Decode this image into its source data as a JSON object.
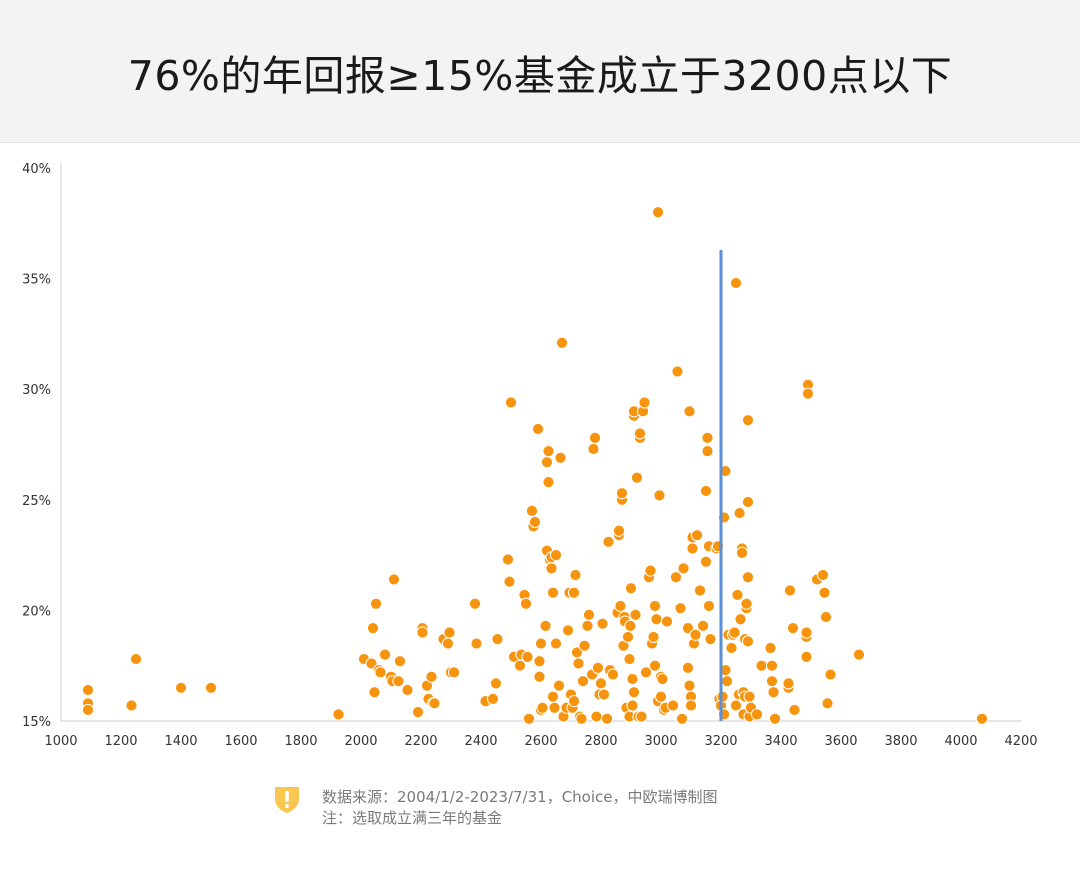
{
  "header": {
    "title": "76%的年回报≥15%基金成立于3200点以下"
  },
  "footer": {
    "source": "数据来源：2004/1/2-2023/7/31，Choice，中欧瑞博制图",
    "note": "注：选取成立满三年的基金",
    "icon": "shield-exclamation-icon"
  },
  "colors": {
    "point": "#f7940f",
    "threshold_line": "#5b8fd6",
    "axis": "#cccccc",
    "header_bg": "#f3f3f3"
  },
  "chart_data": {
    "type": "scatter",
    "title": "76%的年回报≥15%基金成立于3200点以下",
    "xlim": [
      1000,
      4200
    ],
    "ylim": [
      15,
      40
    ],
    "x_ticks": [
      1000,
      1200,
      1400,
      1600,
      1800,
      2000,
      2200,
      2400,
      2600,
      2800,
      3000,
      3200,
      3400,
      3600,
      3800,
      4000,
      4200
    ],
    "y_ticks": [
      15,
      20,
      25,
      30,
      35,
      40
    ],
    "y_tick_labels": [
      "15%",
      "20%",
      "25%",
      "30%",
      "35%",
      "40%"
    ],
    "grid": false,
    "legend": "none",
    "vertical_line": {
      "x": 3200,
      "y_top": 36.3
    },
    "points": [
      [
        1090,
        16.4
      ],
      [
        1090,
        15.8
      ],
      [
        1090,
        15.5
      ],
      [
        1235,
        15.7
      ],
      [
        1250,
        17.8
      ],
      [
        1400,
        16.5
      ],
      [
        1500,
        16.5
      ],
      [
        1925,
        15.3
      ],
      [
        2010,
        17.8
      ],
      [
        2035,
        17.6
      ],
      [
        2040,
        19.2
      ],
      [
        2045,
        16.3
      ],
      [
        2050,
        20.3
      ],
      [
        2060,
        17.3
      ],
      [
        2065,
        17.2
      ],
      [
        2080,
        18.0
      ],
      [
        2100,
        17.0
      ],
      [
        2105,
        16.8
      ],
      [
        2110,
        21.4
      ],
      [
        2125,
        16.8
      ],
      [
        2130,
        17.7
      ],
      [
        2155,
        16.4
      ],
      [
        2190,
        15.4
      ],
      [
        2205,
        19.2
      ],
      [
        2205,
        19.0
      ],
      [
        2220,
        16.6
      ],
      [
        2225,
        16.0
      ],
      [
        2235,
        17.0
      ],
      [
        2240,
        15.8
      ],
      [
        2245,
        15.8
      ],
      [
        2275,
        18.7
      ],
      [
        2290,
        18.5
      ],
      [
        2295,
        19.0
      ],
      [
        2300,
        17.2
      ],
      [
        2310,
        17.2
      ],
      [
        2380,
        20.3
      ],
      [
        2385,
        18.5
      ],
      [
        2415,
        15.9
      ],
      [
        2440,
        16.0
      ],
      [
        2450,
        16.7
      ],
      [
        2455,
        18.7
      ],
      [
        2490,
        22.3
      ],
      [
        2495,
        21.3
      ],
      [
        2500,
        29.4
      ],
      [
        2510,
        17.9
      ],
      [
        2530,
        17.5
      ],
      [
        2535,
        18.0
      ],
      [
        2545,
        20.7
      ],
      [
        2550,
        20.3
      ],
      [
        2555,
        17.9
      ],
      [
        2560,
        15.1
      ],
      [
        2570,
        24.5
      ],
      [
        2575,
        23.8
      ],
      [
        2580,
        24.0
      ],
      [
        2590,
        28.2
      ],
      [
        2595,
        17.0
      ],
      [
        2595,
        17.7
      ],
      [
        2600,
        18.5
      ],
      [
        2600,
        15.5
      ],
      [
        2605,
        15.6
      ],
      [
        2615,
        19.3
      ],
      [
        2620,
        22.7
      ],
      [
        2620,
        26.7
      ],
      [
        2625,
        27.2
      ],
      [
        2625,
        25.8
      ],
      [
        2630,
        22.3
      ],
      [
        2635,
        21.9
      ],
      [
        2635,
        22.4
      ],
      [
        2640,
        20.8
      ],
      [
        2640,
        16.1
      ],
      [
        2645,
        15.6
      ],
      [
        2650,
        22.5
      ],
      [
        2650,
        18.5
      ],
      [
        2660,
        16.6
      ],
      [
        2665,
        26.9
      ],
      [
        2670,
        32.1
      ],
      [
        2675,
        15.2
      ],
      [
        2685,
        15.6
      ],
      [
        2690,
        19.1
      ],
      [
        2695,
        20.8
      ],
      [
        2700,
        16.2
      ],
      [
        2705,
        15.6
      ],
      [
        2710,
        15.9
      ],
      [
        2710,
        20.8
      ],
      [
        2715,
        21.6
      ],
      [
        2720,
        18.1
      ],
      [
        2725,
        17.6
      ],
      [
        2730,
        15.2
      ],
      [
        2735,
        15.1
      ],
      [
        2740,
        16.8
      ],
      [
        2745,
        18.4
      ],
      [
        2755,
        19.3
      ],
      [
        2760,
        19.8
      ],
      [
        2770,
        17.1
      ],
      [
        2775,
        27.3
      ],
      [
        2780,
        27.8
      ],
      [
        2785,
        15.2
      ],
      [
        2790,
        17.4
      ],
      [
        2795,
        16.2
      ],
      [
        2800,
        16.7
      ],
      [
        2805,
        19.4
      ],
      [
        2810,
        16.2
      ],
      [
        2820,
        15.1
      ],
      [
        2825,
        23.1
      ],
      [
        2830,
        17.3
      ],
      [
        2840,
        17.1
      ],
      [
        2855,
        19.9
      ],
      [
        2860,
        23.4
      ],
      [
        2860,
        23.6
      ],
      [
        2865,
        20.2
      ],
      [
        2870,
        25.0
      ],
      [
        2870,
        25.3
      ],
      [
        2875,
        18.4
      ],
      [
        2878,
        19.7
      ],
      [
        2880,
        19.5
      ],
      [
        2885,
        15.6
      ],
      [
        2890,
        18.8
      ],
      [
        2895,
        17.8
      ],
      [
        2895,
        15.2
      ],
      [
        2898,
        19.3
      ],
      [
        2900,
        21.0
      ],
      [
        2905,
        16.9
      ],
      [
        2905,
        15.7
      ],
      [
        2910,
        16.3
      ],
      [
        2910,
        28.8
      ],
      [
        2910,
        29.0
      ],
      [
        2915,
        19.8
      ],
      [
        2920,
        26.0
      ],
      [
        2925,
        15.2
      ],
      [
        2930,
        27.8
      ],
      [
        2930,
        28.0
      ],
      [
        2935,
        15.2
      ],
      [
        2940,
        29.0
      ],
      [
        2945,
        29.4
      ],
      [
        2950,
        17.2
      ],
      [
        2960,
        21.5
      ],
      [
        2965,
        21.8
      ],
      [
        2970,
        18.5
      ],
      [
        2975,
        18.8
      ],
      [
        2980,
        20.2
      ],
      [
        2980,
        17.5
      ],
      [
        2985,
        19.6
      ],
      [
        2990,
        15.9
      ],
      [
        2990,
        38.0
      ],
      [
        2995,
        25.2
      ],
      [
        3000,
        16.1
      ],
      [
        3000,
        17.0
      ],
      [
        3005,
        16.9
      ],
      [
        3010,
        15.5
      ],
      [
        3015,
        15.6
      ],
      [
        3020,
        19.5
      ],
      [
        3040,
        15.7
      ],
      [
        3050,
        21.5
      ],
      [
        3055,
        30.8
      ],
      [
        3065,
        20.1
      ],
      [
        3070,
        15.1
      ],
      [
        3075,
        21.9
      ],
      [
        3090,
        19.2
      ],
      [
        3090,
        17.4
      ],
      [
        3095,
        16.6
      ],
      [
        3095,
        29.0
      ],
      [
        3100,
        16.1
      ],
      [
        3100,
        15.7
      ],
      [
        3105,
        22.8
      ],
      [
        3105,
        23.3
      ],
      [
        3110,
        18.5
      ],
      [
        3115,
        18.9
      ],
      [
        3120,
        23.4
      ],
      [
        3130,
        20.9
      ],
      [
        3140,
        19.3
      ],
      [
        3150,
        22.2
      ],
      [
        3150,
        25.4
      ],
      [
        3155,
        27.2
      ],
      [
        3155,
        27.8
      ],
      [
        3160,
        22.9
      ],
      [
        3160,
        20.2
      ],
      [
        3165,
        18.7
      ],
      [
        3185,
        22.8
      ],
      [
        3190,
        22.9
      ],
      [
        3195,
        16.0
      ],
      [
        3200,
        15.7
      ],
      [
        3205,
        16.1
      ],
      [
        3210,
        15.3
      ],
      [
        3210,
        24.2
      ],
      [
        3215,
        17.3
      ],
      [
        3215,
        26.3
      ],
      [
        3220,
        16.8
      ],
      [
        3225,
        18.9
      ],
      [
        3235,
        18.3
      ],
      [
        3240,
        18.9
      ],
      [
        3245,
        19.0
      ],
      [
        3250,
        34.8
      ],
      [
        3250,
        15.7
      ],
      [
        3255,
        20.7
      ],
      [
        3260,
        16.2
      ],
      [
        3262,
        24.4
      ],
      [
        3265,
        19.6
      ],
      [
        3270,
        22.8
      ],
      [
        3270,
        22.6
      ],
      [
        3275,
        15.3
      ],
      [
        3275,
        16.3
      ],
      [
        3280,
        18.7
      ],
      [
        3280,
        16.1
      ],
      [
        3285,
        20.1
      ],
      [
        3285,
        20.3
      ],
      [
        3290,
        21.5
      ],
      [
        3290,
        28.6
      ],
      [
        3290,
        24.9
      ],
      [
        3290,
        18.6
      ],
      [
        3295,
        16.1
      ],
      [
        3295,
        15.2
      ],
      [
        3300,
        15.6
      ],
      [
        3320,
        15.3
      ],
      [
        3335,
        17.5
      ],
      [
        3365,
        18.3
      ],
      [
        3370,
        17.5
      ],
      [
        3370,
        16.8
      ],
      [
        3375,
        16.3
      ],
      [
        3380,
        15.1
      ],
      [
        3425,
        16.5
      ],
      [
        3425,
        16.7
      ],
      [
        3430,
        20.9
      ],
      [
        3440,
        19.2
      ],
      [
        3445,
        15.5
      ],
      [
        3485,
        18.8
      ],
      [
        3485,
        19.0
      ],
      [
        3485,
        17.9
      ],
      [
        3490,
        30.2
      ],
      [
        3490,
        29.8
      ],
      [
        3520,
        21.4
      ],
      [
        3540,
        21.6
      ],
      [
        3545,
        20.8
      ],
      [
        3550,
        19.7
      ],
      [
        3555,
        15.8
      ],
      [
        3565,
        17.1
      ],
      [
        3660,
        18.0
      ],
      [
        4070,
        15.1
      ]
    ]
  }
}
